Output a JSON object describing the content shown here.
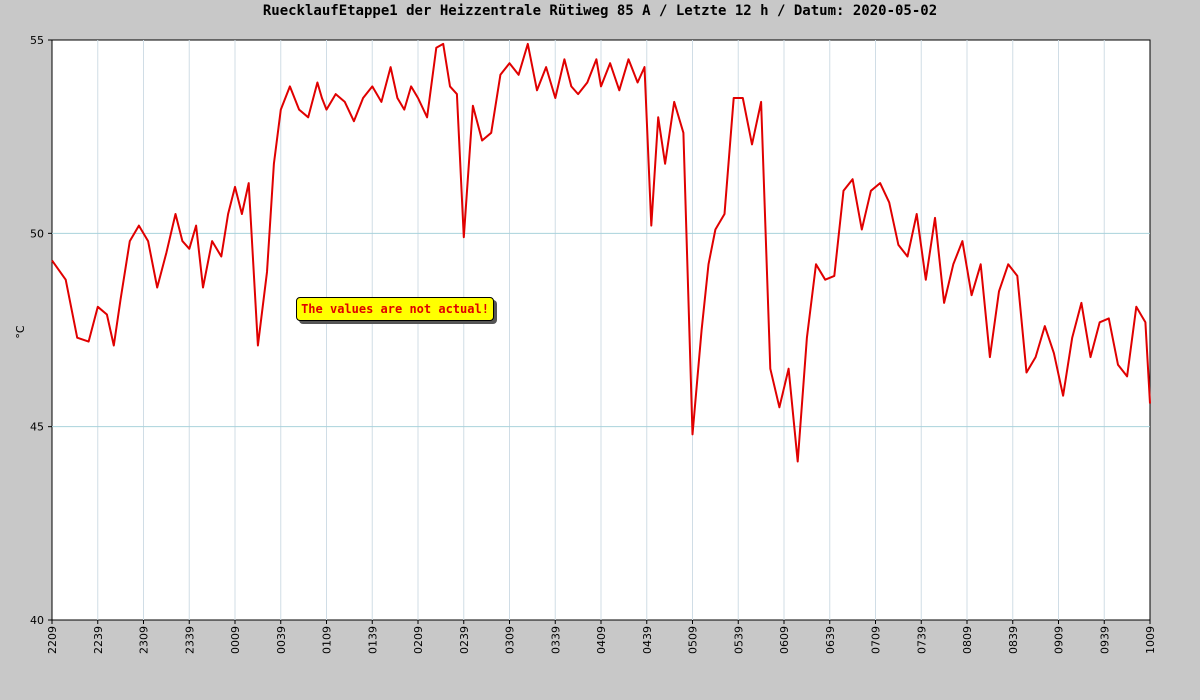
{
  "chart_data": {
    "type": "line",
    "title": "RuecklaufEtappe1 der Heizzentrale Rütiweg 85 A / Letzte 12 h / Datum: 2020-05-02",
    "ylabel": "°C",
    "xlabel": "",
    "ylim": [
      40,
      55
    ],
    "yticks": [
      40,
      45,
      50,
      55
    ],
    "xticks": [
      "2209",
      "2239",
      "2309",
      "2339",
      "0009",
      "0039",
      "0109",
      "0139",
      "0209",
      "0239",
      "0309",
      "0339",
      "0409",
      "0439",
      "0509",
      "0539",
      "0609",
      "0639",
      "0709",
      "0739",
      "0809",
      "0839",
      "0909",
      "0939",
      "1009"
    ],
    "grid": true,
    "annotation": "The values are not actual!",
    "series": [
      {
        "color": "#e00000",
        "x": [
          0,
          0.3,
          0.55,
          0.8,
          1.0,
          1.2,
          1.35,
          1.5,
          1.7,
          1.9,
          2.1,
          2.3,
          2.5,
          2.7,
          2.85,
          3.0,
          3.15,
          3.3,
          3.5,
          3.7,
          3.85,
          4.0,
          4.15,
          4.3,
          4.5,
          4.7,
          4.85,
          5.0,
          5.2,
          5.4,
          5.6,
          5.8,
          5.9,
          6.0,
          6.2,
          6.4,
          6.6,
          6.8,
          7.0,
          7.2,
          7.4,
          7.55,
          7.7,
          7.85,
          8.0,
          8.2,
          8.4,
          8.55,
          8.7,
          8.85,
          9.0,
          9.2,
          9.4,
          9.6,
          9.8,
          10.0,
          10.2,
          10.4,
          10.6,
          10.8,
          11.0,
          11.2,
          11.35,
          11.5,
          11.7,
          11.9,
          12.0,
          12.2,
          12.4,
          12.6,
          12.8,
          12.95,
          13.1,
          13.25,
          13.4,
          13.6,
          13.8,
          14.0,
          14.2,
          14.35,
          14.5,
          14.7,
          14.9,
          15.1,
          15.3,
          15.5,
          15.7,
          15.9,
          16.1,
          16.3,
          16.5,
          16.7,
          16.9,
          17.1,
          17.3,
          17.5,
          17.7,
          17.9,
          18.1,
          18.3,
          18.5,
          18.7,
          18.9,
          19.1,
          19.3,
          19.5,
          19.7,
          19.9,
          20.1,
          20.3,
          20.5,
          20.7,
          20.9,
          21.1,
          21.3,
          21.5,
          21.7,
          21.9,
          22.1,
          22.3,
          22.5,
          22.7,
          22.9,
          23.1,
          23.3,
          23.5,
          23.7,
          23.9,
          24.0
        ],
        "y": [
          49.3,
          48.8,
          47.3,
          47.2,
          48.1,
          47.9,
          47.1,
          48.3,
          49.8,
          50.2,
          49.8,
          48.6,
          49.5,
          50.5,
          49.8,
          49.6,
          50.2,
          48.6,
          49.8,
          49.4,
          50.5,
          51.2,
          50.5,
          51.3,
          47.1,
          49.0,
          51.8,
          53.2,
          53.8,
          53.2,
          53.0,
          53.9,
          53.5,
          53.2,
          53.6,
          53.4,
          52.9,
          53.5,
          53.8,
          53.4,
          54.3,
          53.5,
          53.2,
          53.8,
          53.5,
          53.0,
          54.8,
          54.9,
          53.8,
          53.6,
          49.9,
          53.3,
          52.4,
          52.6,
          54.1,
          54.4,
          54.1,
          54.9,
          53.7,
          54.3,
          53.5,
          54.5,
          53.8,
          53.6,
          53.9,
          54.5,
          53.8,
          54.4,
          53.7,
          54.5,
          53.9,
          54.3,
          50.2,
          53.0,
          51.8,
          53.4,
          52.6,
          44.8,
          47.5,
          49.2,
          50.1,
          50.5,
          53.5,
          53.5,
          52.3,
          53.4,
          46.5,
          45.5,
          46.5,
          44.1,
          47.3,
          49.2,
          48.8,
          48.9,
          51.1,
          51.4,
          50.1,
          51.1,
          51.3,
          50.8,
          49.7,
          49.4,
          50.5,
          48.8,
          50.4,
          48.2,
          49.2,
          49.8,
          48.4,
          49.2,
          46.8,
          48.5,
          49.2,
          48.9,
          46.4,
          46.8,
          47.6,
          46.9,
          45.8,
          47.3,
          48.2,
          46.8,
          47.7,
          47.8,
          46.6,
          46.3,
          48.1,
          47.7,
          45.6
        ]
      }
    ]
  }
}
